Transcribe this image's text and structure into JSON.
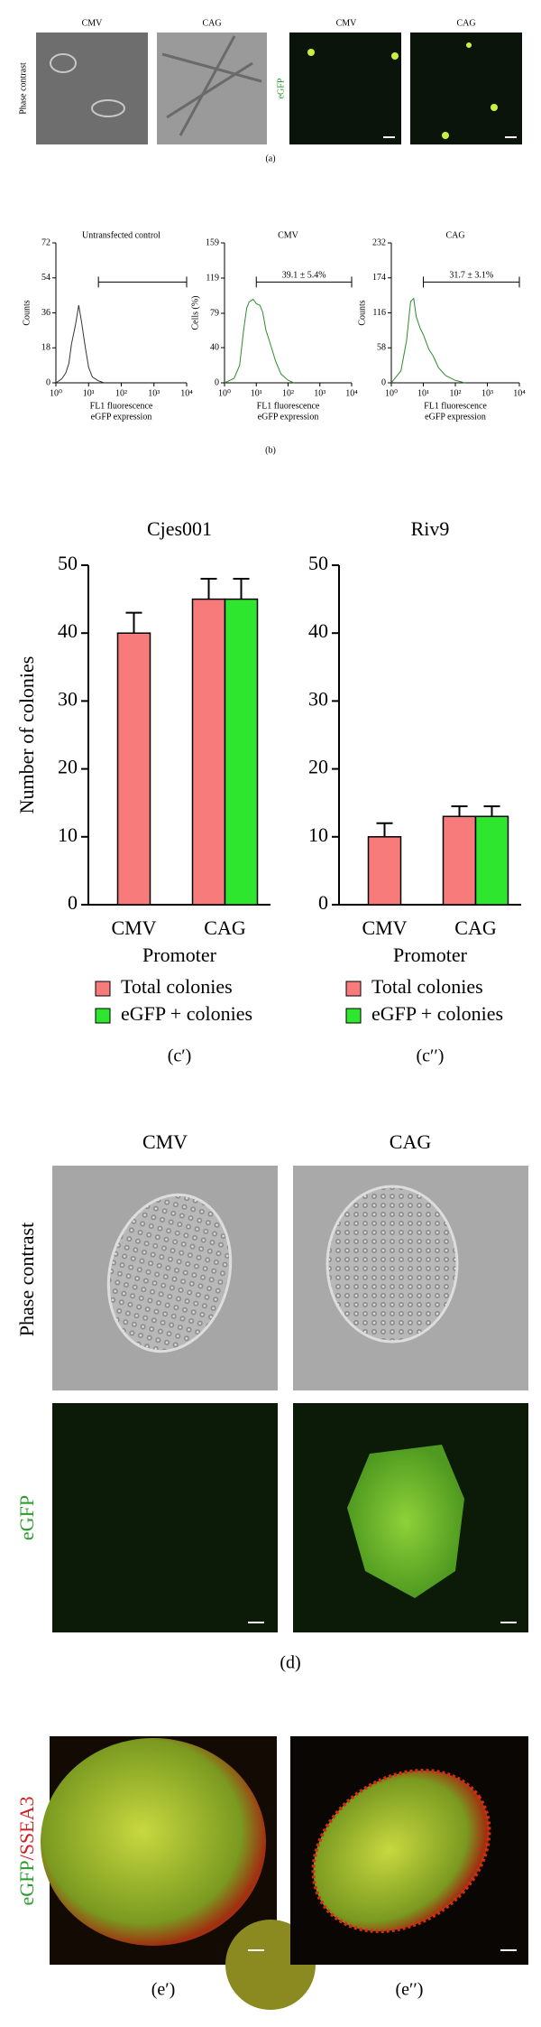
{
  "panel_a": {
    "columns": [
      "CMV",
      "CAG",
      "CMV",
      "CAG"
    ],
    "row_labels": [
      "Phase contrast",
      "eGFP"
    ],
    "caption": "(a)"
  },
  "panel_b_caption": "(b)",
  "chart_data": [
    {
      "type": "line",
      "title": "Untransfected control",
      "y_label": "Counts",
      "x_label": [
        "FL1 fluorescence",
        "eGFP expression"
      ],
      "x_log": true,
      "xlim": [
        1,
        10000
      ],
      "xticks": [
        {
          "value": 1,
          "label": "10⁰"
        },
        {
          "value": 10,
          "label": "10¹"
        },
        {
          "value": 100,
          "label": "10²"
        },
        {
          "value": 1000,
          "label": "10³"
        },
        {
          "value": 10000,
          "label": "10⁴"
        }
      ],
      "ylim": [
        0,
        72
      ],
      "yticks": [
        0,
        18,
        36,
        54,
        72
      ],
      "gate": [
        20,
        10000
      ],
      "series": [
        {
          "color": "#333333",
          "x": [
            1,
            1.5,
            2,
            2.5,
            3,
            4,
            5,
            6,
            8,
            10,
            13,
            20,
            30
          ],
          "values": [
            0,
            2,
            5,
            10,
            20,
            30,
            40,
            32,
            18,
            8,
            3,
            1,
            0
          ]
        }
      ]
    },
    {
      "type": "line",
      "title": "CMV",
      "y_label": "Cells (%)",
      "x_label": [
        "FL1 fluorescence",
        "eGFP expression"
      ],
      "x_log": true,
      "xlim": [
        1,
        10000
      ],
      "xticks": [
        {
          "value": 1,
          "label": "10⁰"
        },
        {
          "value": 10,
          "label": "10¹"
        },
        {
          "value": 100,
          "label": "10²"
        },
        {
          "value": 1000,
          "label": "10³"
        },
        {
          "value": 10000,
          "label": "10⁴"
        }
      ],
      "ylim": [
        0,
        159
      ],
      "yticks": [
        0,
        40,
        79,
        119,
        159
      ],
      "gate": [
        10,
        10000
      ],
      "annotation": "39.1 ± 5.4%",
      "series": [
        {
          "color": "#2e8b2e",
          "x": [
            1,
            2,
            3,
            4,
            5,
            6,
            8,
            10,
            13,
            16,
            20,
            30,
            40,
            60,
            100,
            150
          ],
          "values": [
            0,
            5,
            20,
            60,
            85,
            92,
            95,
            90,
            88,
            80,
            60,
            40,
            25,
            10,
            3,
            0
          ]
        }
      ]
    },
    {
      "type": "line",
      "title": "CAG",
      "y_label": "Counts",
      "x_label": [
        "FL1 fluorescence",
        "eGFP expression"
      ],
      "x_log": true,
      "xlim": [
        1,
        10000
      ],
      "xticks": [
        {
          "value": 1,
          "label": "10⁰"
        },
        {
          "value": 10,
          "label": "10¹"
        },
        {
          "value": 100,
          "label": "10²"
        },
        {
          "value": 1000,
          "label": "10³"
        },
        {
          "value": 10000,
          "label": "10⁴"
        }
      ],
      "ylim": [
        0,
        232
      ],
      "yticks": [
        0,
        58,
        116,
        174,
        232
      ],
      "gate": [
        10,
        10000
      ],
      "annotation": "31.7 ± 3.1%",
      "series": [
        {
          "color": "#2e8b2e",
          "x": [
            1,
            2,
            3,
            4,
            5,
            6,
            8,
            10,
            15,
            20,
            30,
            50,
            100,
            200
          ],
          "values": [
            0,
            20,
            70,
            135,
            140,
            110,
            90,
            80,
            55,
            45,
            25,
            12,
            4,
            0
          ]
        }
      ]
    },
    {
      "type": "bar",
      "title": "Cjes001",
      "y_label": "Number of colonies",
      "x_label": "Promoter",
      "categories": [
        "CMV",
        "CAG"
      ],
      "ylim": [
        0,
        50
      ],
      "yticks": [
        0,
        10,
        20,
        30,
        40,
        50
      ],
      "caption": "(c′)",
      "series": [
        {
          "name": "Total colonies",
          "color": "#f77b7b",
          "values": [
            40,
            45
          ],
          "errors": [
            3,
            3
          ]
        },
        {
          "name": "eGFP + colonies",
          "color": "#2ee62e",
          "values": [
            null,
            45
          ],
          "errors": [
            null,
            3
          ]
        }
      ]
    },
    {
      "type": "bar",
      "title": "Riv9",
      "x_label": "Promoter",
      "categories": [
        "CMV",
        "CAG"
      ],
      "ylim": [
        0,
        50
      ],
      "yticks": [
        0,
        10,
        20,
        30,
        40,
        50
      ],
      "caption": "(c′′)",
      "series": [
        {
          "name": "Total colonies",
          "color": "#f77b7b",
          "values": [
            10,
            13
          ],
          "errors": [
            2,
            1.5
          ]
        },
        {
          "name": "eGFP + colonies",
          "color": "#2ee62e",
          "values": [
            null,
            13
          ],
          "errors": [
            null,
            1.5
          ]
        }
      ]
    }
  ],
  "panel_d": {
    "columns": [
      "CMV",
      "CAG"
    ],
    "row_labels": [
      "Phase contrast",
      "eGFP"
    ],
    "caption": "(d)"
  },
  "panel_e": {
    "row_label": [
      "eGFP",
      "/SSEA3"
    ],
    "captions": [
      "(e′)",
      "(e′′)"
    ]
  }
}
